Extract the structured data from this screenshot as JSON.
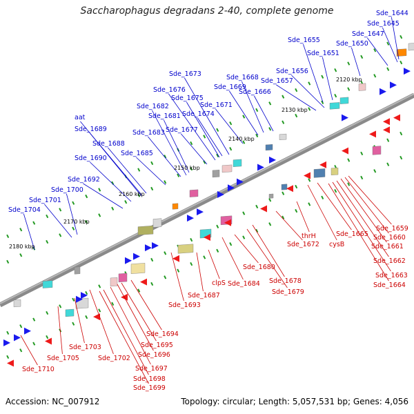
{
  "title": "Saccharophagus degradans 2-40, complete genome",
  "accession": "Accession: NC_007912",
  "summary": "Topology: circular; Length: 5,057,531 bp; Genes: 4,056",
  "scale_labels": [
    "2120 kbp",
    "2130 kbp",
    "2140 kbp",
    "2150 kbp",
    "2160 kbp",
    "2170 kbp",
    "2180 kbp"
  ],
  "top_labels": [
    "Sde_1644",
    "Sde_1645",
    "Sde_1647",
    "Sde_1650",
    "Sde_1651",
    "Sde_1655",
    "Sde_1656",
    "Sde_1657",
    "Sde_1666",
    "Sde_1668",
    "Sde_1669",
    "Sde_1671",
    "Sde_1673",
    "Sde_1674",
    "Sde_1675",
    "Sde_1676",
    "Sde_1677",
    "Sde_1681",
    "Sde_1682",
    "Sde_1683",
    "Sde_1685",
    "Sde_1688",
    "Sde_1689",
    "aat",
    "Sde_1690",
    "Sde_1692",
    "Sde_1700",
    "Sde_1701",
    "Sde_1704"
  ],
  "bottom_labels": [
    "Sde_1659",
    "Sde_1660",
    "Sde_1661",
    "Sde_1662",
    "Sde_1663",
    "Sde_1664",
    "Sde_1665",
    "cysB",
    "thrH",
    "Sde_1672",
    "Sde_1678",
    "Sde_1679",
    "Sde_1680",
    "Sde_1684",
    "clpS",
    "Sde_1687",
    "Sde_1693",
    "Sde_1694",
    "Sde_1695",
    "Sde_1696",
    "Sde_1697",
    "Sde_1698",
    "Sde_1699",
    "Sde_1702",
    "Sde_1703",
    "Sde_1705",
    "Sde_1710"
  ],
  "colors": {
    "backbone": "#8a8a8a",
    "forward_gene": "#1a1aee",
    "reverse_gene": "#ee1a1a",
    "top_label": "#0000cc",
    "bottom_label": "#cc0000",
    "tick": "#229922"
  }
}
